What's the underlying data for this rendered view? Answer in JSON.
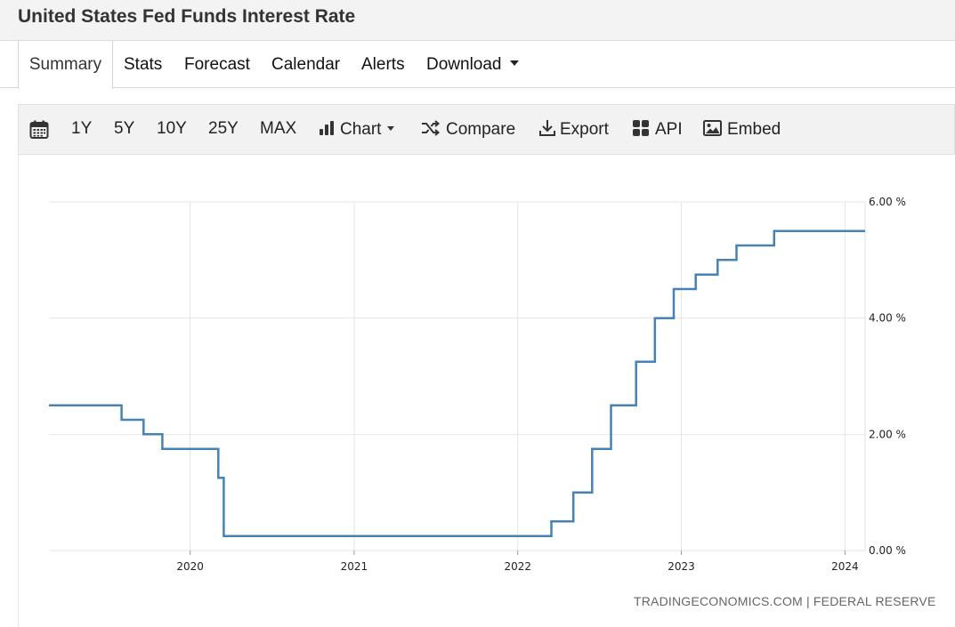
{
  "header": {
    "title": "United States Fed Funds Interest Rate"
  },
  "tabs": [
    {
      "label": "Summary",
      "active": true
    },
    {
      "label": "Stats"
    },
    {
      "label": "Forecast"
    },
    {
      "label": "Calendar"
    },
    {
      "label": "Alerts"
    },
    {
      "label": "Download",
      "has_dropdown": true
    }
  ],
  "toolbar": {
    "calendar_icon": "calendar-icon",
    "ranges": [
      "1Y",
      "5Y",
      "10Y",
      "25Y",
      "MAX"
    ],
    "chart_label": "Chart",
    "compare_label": "Compare",
    "export_label": "Export",
    "api_label": "API",
    "embed_label": "Embed"
  },
  "source": "TRADINGECONOMICS.COM | FEDERAL RESERVE",
  "colors": {
    "line": "#4682b4",
    "grid": "#e6e6e6"
  },
  "chart_data": {
    "type": "line",
    "step": true,
    "title": "",
    "xlabel": "",
    "ylabel": "",
    "x_ticks": [
      "2020",
      "2021",
      "2022",
      "2023",
      "2024"
    ],
    "y_ticks": [
      "0.00 %",
      "2.00 %",
      "4.00 %",
      "6.00 %"
    ],
    "ylim": [
      0,
      6
    ],
    "xlim": [
      "2019-02-20",
      "2024-02-15"
    ],
    "y_axis_position": "right",
    "grid": true,
    "series": [
      {
        "points": [
          {
            "x": "2019-02-20",
            "y": 2.5
          },
          {
            "x": "2019-08-01",
            "y": 2.25
          },
          {
            "x": "2019-09-19",
            "y": 2.0
          },
          {
            "x": "2019-10-31",
            "y": 1.75
          },
          {
            "x": "2020-03-04",
            "y": 1.25
          },
          {
            "x": "2020-03-16",
            "y": 0.25
          },
          {
            "x": "2022-03-17",
            "y": 0.5
          },
          {
            "x": "2022-05-05",
            "y": 1.0
          },
          {
            "x": "2022-06-16",
            "y": 1.75
          },
          {
            "x": "2022-07-28",
            "y": 2.5
          },
          {
            "x": "2022-09-22",
            "y": 3.25
          },
          {
            "x": "2022-11-03",
            "y": 4.0
          },
          {
            "x": "2022-12-15",
            "y": 4.5
          },
          {
            "x": "2023-02-02",
            "y": 4.75
          },
          {
            "x": "2023-03-23",
            "y": 5.0
          },
          {
            "x": "2023-05-04",
            "y": 5.25
          },
          {
            "x": "2023-07-27",
            "y": 5.5
          },
          {
            "x": "2024-02-15",
            "y": 5.5
          }
        ]
      }
    ]
  }
}
